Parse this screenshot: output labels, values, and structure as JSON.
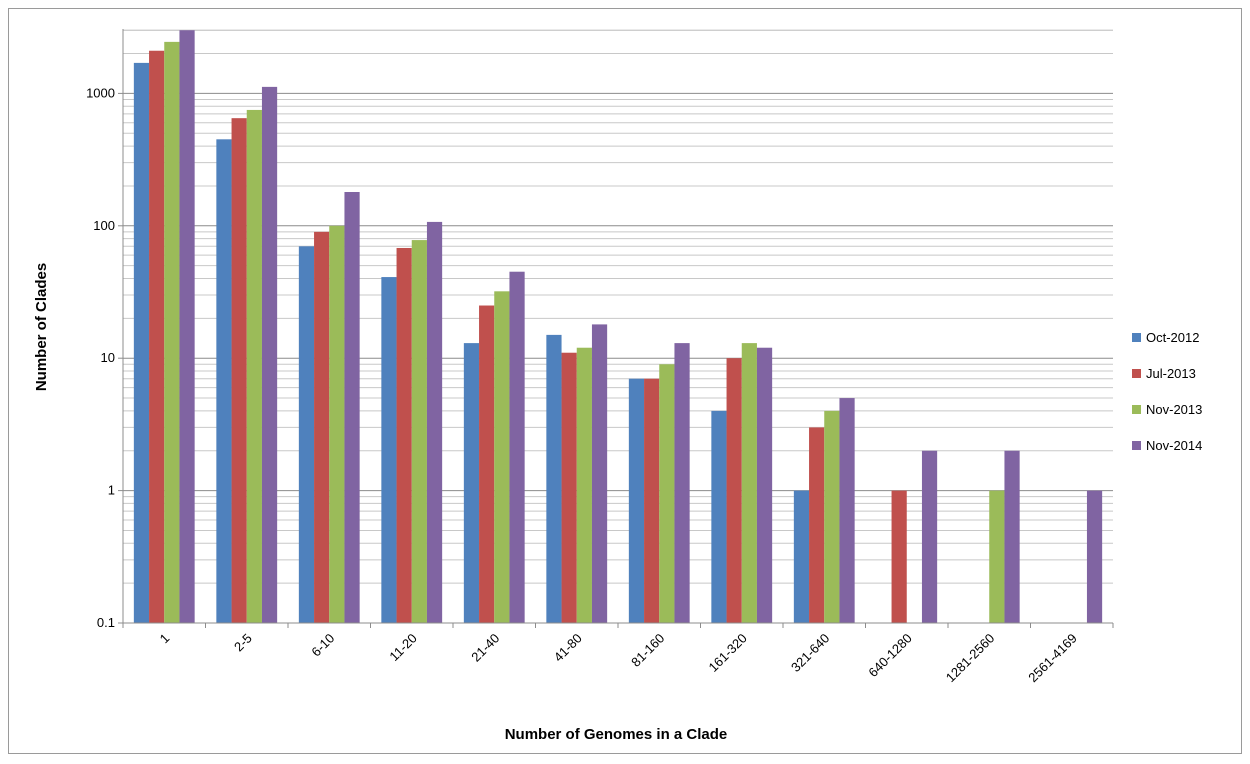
{
  "chart_data": {
    "type": "bar",
    "title": "",
    "xlabel": "Number of Genomes in a Clade",
    "ylabel": "Number of Clades",
    "yscale": "log",
    "ylim": [
      0.1,
      3000
    ],
    "yticks": [
      "0.1",
      "1",
      "10",
      "100",
      "1000"
    ],
    "grid": "major and minor horizontal gridlines",
    "legend_position": "right",
    "categories": [
      "1",
      "2-5",
      "6-10",
      "11-20",
      "21-40",
      "41-80",
      "81-160",
      "161-320",
      "321-640",
      "640-1280",
      "1281-2560",
      "2561-4169"
    ],
    "series": [
      {
        "name": "Oct-2012",
        "color": "#4f81bd",
        "values": [
          1700,
          450,
          70,
          41,
          13,
          15,
          7,
          4,
          1,
          null,
          null,
          null
        ]
      },
      {
        "name": "Jul-2013",
        "color": "#c0504d",
        "values": [
          2100,
          650,
          90,
          68,
          25,
          11,
          7,
          10,
          3,
          1,
          null,
          null
        ]
      },
      {
        "name": "Nov-2013",
        "color": "#9bbb59",
        "values": [
          2450,
          750,
          100,
          78,
          32,
          12,
          9,
          13,
          4,
          null,
          1,
          null
        ]
      },
      {
        "name": "Nov-2014",
        "color": "#8064a2",
        "values": [
          3000,
          1120,
          180,
          107,
          45,
          18,
          13,
          12,
          5,
          2,
          2,
          1
        ]
      }
    ]
  }
}
